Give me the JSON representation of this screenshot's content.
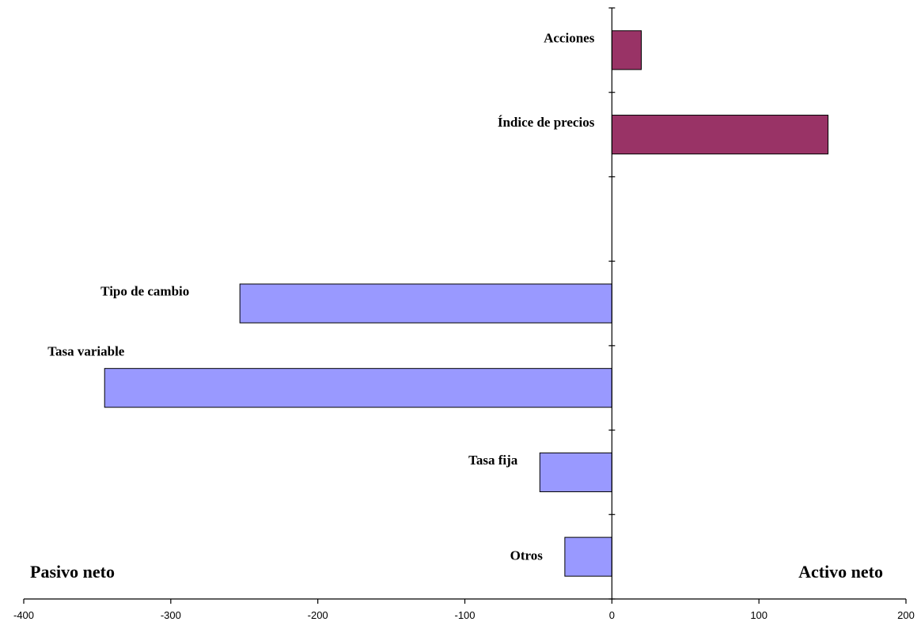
{
  "chart_data": {
    "type": "bar",
    "orientation": "horizontal",
    "categories": [
      "Acciones",
      "Índice de precios",
      "",
      "Tipo de cambio",
      "Tasa variable",
      "Tasa fija",
      "Otros"
    ],
    "values": [
      20,
      147,
      null,
      -253,
      -345,
      -49,
      -32
    ],
    "bar_colors": [
      "#993366",
      "#993366",
      null,
      "#9999ff",
      "#9999ff",
      "#9999ff",
      "#9999ff"
    ],
    "xlim": [
      -400,
      200
    ],
    "xticks": [
      "-400",
      "-300",
      "-200",
      "-100",
      "0",
      "100",
      "200"
    ],
    "left_annotation": "Pasivo neto",
    "right_annotation": "Activo neto",
    "grid": false,
    "legend": "none"
  }
}
